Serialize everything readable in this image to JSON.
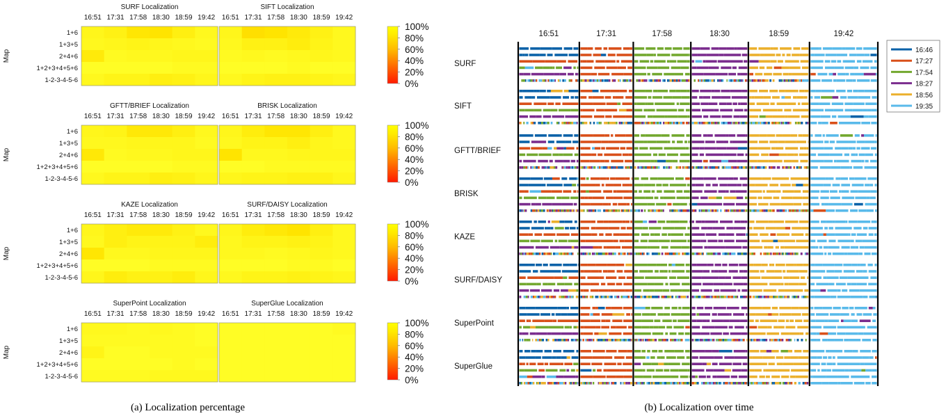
{
  "captions": {
    "a": "(a) Localization percentage",
    "b": "(b) Localization over time"
  },
  "chart_data": [
    {
      "type": "heatmap",
      "y_axis_title": "Map",
      "sessions": [
        "16:51",
        "17:31",
        "17:58",
        "18:30",
        "18:59",
        "19:42"
      ],
      "maps": [
        "1+6",
        "1+3+5",
        "2+4+6",
        "1+2+3+4+5+6",
        "1-2-3-4-5-6"
      ],
      "colorbar": {
        "ticks": [
          "100%",
          "80%",
          "60%",
          "40%",
          "20%",
          "0%"
        ],
        "range": [
          0,
          100
        ],
        "low_color": "#ff1a00",
        "high_color": "#ffff00"
      },
      "panels": [
        {
          "title": "SURF Localization",
          "values": [
            [
              96,
              94,
              89,
              88,
              93,
              97
            ],
            [
              97,
              96,
              95,
              96,
              97,
              98
            ],
            [
              91,
              98,
              97,
              97,
              96,
              96
            ],
            [
              99,
              99,
              99,
              99,
              98,
              98
            ],
            [
              97,
              95,
              95,
              93,
              94,
              96
            ]
          ]
        },
        {
          "title": "SIFT Localization",
          "values": [
            [
              96,
              86,
              88,
              91,
              94,
              97
            ],
            [
              97,
              94,
              94,
              92,
              95,
              97
            ],
            [
              98,
              97,
              98,
              97,
              96,
              97
            ],
            [
              99,
              99,
              99,
              98,
              99,
              99
            ],
            [
              97,
              95,
              94,
              94,
              95,
              96
            ]
          ]
        },
        {
          "title": "GFTT/BRIEF Localization",
          "values": [
            [
              96,
              95,
              90,
              90,
              93,
              97
            ],
            [
              97,
              97,
              96,
              96,
              96,
              98
            ],
            [
              90,
              98,
              97,
              97,
              96,
              96
            ],
            [
              99,
              99,
              99,
              99,
              98,
              98
            ],
            [
              97,
              95,
              95,
              93,
              94,
              96
            ]
          ]
        },
        {
          "title": "BRISK Localization",
          "values": [
            [
              96,
              92,
              89,
              89,
              93,
              97
            ],
            [
              97,
              95,
              95,
              93,
              96,
              97
            ],
            [
              88,
              97,
              97,
              96,
              96,
              96
            ],
            [
              99,
              99,
              98,
              98,
              98,
              98
            ],
            [
              96,
              95,
              95,
              94,
              94,
              96
            ]
          ]
        },
        {
          "title": "KAZE Localization",
          "values": [
            [
              96,
              93,
              91,
              91,
              94,
              97
            ],
            [
              97,
              93,
              95,
              95,
              95,
              92
            ],
            [
              89,
              97,
              97,
              96,
              96,
              96
            ],
            [
              99,
              99,
              99,
              98,
              98,
              98
            ],
            [
              96,
              92,
              94,
              94,
              92,
              96
            ]
          ]
        },
        {
          "title": "SURF/DAISY Localization",
          "values": [
            [
              96,
              92,
              90,
              88,
              93,
              97
            ],
            [
              97,
              95,
              95,
              94,
              95,
              97
            ],
            [
              97,
              97,
              98,
              97,
              96,
              97
            ],
            [
              99,
              99,
              99,
              98,
              98,
              99
            ],
            [
              97,
              95,
              95,
              94,
              95,
              96
            ]
          ]
        },
        {
          "title": "SuperPoint Localization",
          "values": [
            [
              97,
              97,
              98,
              97,
              98,
              99
            ],
            [
              98,
              98,
              98,
              98,
              98,
              99
            ],
            [
              95,
              99,
              99,
              98,
              98,
              98
            ],
            [
              99,
              99,
              99,
              99,
              98,
              99
            ],
            [
              98,
              98,
              98,
              97,
              97,
              97
            ]
          ]
        },
        {
          "title": "SuperGlue Localization",
          "values": [
            [
              99,
              99,
              99,
              99,
              99,
              98
            ],
            [
              99,
              99,
              99,
              99,
              99,
              99
            ],
            [
              99,
              99,
              99,
              99,
              99,
              99
            ],
            [
              99,
              99,
              99,
              99,
              99,
              99
            ],
            [
              99,
              99,
              99,
              99,
              99,
              99
            ]
          ]
        }
      ]
    },
    {
      "type": "timeline",
      "sessions": [
        "16:51",
        "17:31",
        "17:58",
        "18:30",
        "18:59",
        "19:42"
      ],
      "session_boundaries": [
        0,
        17,
        32,
        48,
        64,
        81,
        100
      ],
      "methods": [
        "SURF",
        "SIFT",
        "GFTT/BRIEF",
        "BRISK",
        "KAZE",
        "SURF/DAISY",
        "SuperPoint",
        "SuperGlue"
      ],
      "map_rows_per_method": 6,
      "legend": [
        {
          "label": "16:46",
          "color": "#0b62a8"
        },
        {
          "label": "17:27",
          "color": "#d9501a"
        },
        {
          "label": "17:54",
          "color": "#73a82f"
        },
        {
          "label": "18:27",
          "color": "#7b2d8e"
        },
        {
          "label": "18:56",
          "color": "#ebb02d"
        },
        {
          "label": "19:35",
          "color": "#59baea"
        }
      ]
    }
  ]
}
